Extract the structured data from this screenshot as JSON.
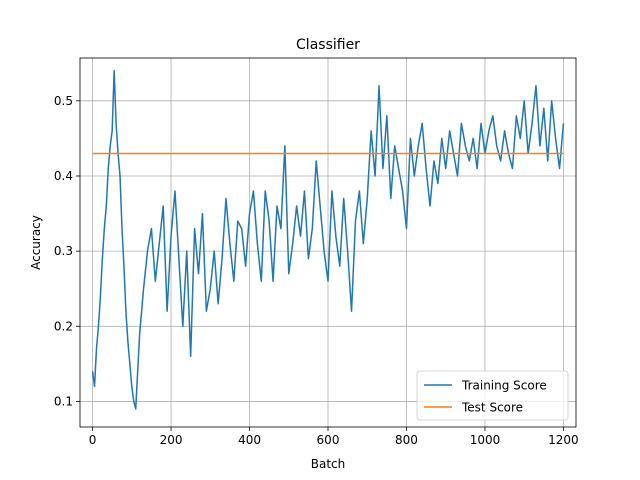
{
  "chart_data": {
    "type": "line",
    "title": "Classifier",
    "xlabel": "Batch",
    "ylabel": "Accuracy",
    "xlim": [
      -32,
      1232
    ],
    "ylim": [
      0.066,
      0.557
    ],
    "x_ticks": [
      0,
      200,
      400,
      600,
      800,
      1000,
      1200
    ],
    "y_ticks": [
      0.1,
      0.2,
      0.3,
      0.4,
      0.5
    ],
    "x_tick_labels": [
      "0",
      "200",
      "400",
      "600",
      "800",
      "1000",
      "1200"
    ],
    "y_tick_labels": [
      "0.1",
      "0.2",
      "0.3",
      "0.4",
      "0.5"
    ],
    "grid": true,
    "legend_position": "lower-right",
    "series": [
      {
        "name": "Training Score",
        "color": "#1f77b4",
        "x": [
          0,
          5,
          10,
          15,
          20,
          25,
          30,
          35,
          40,
          45,
          50,
          55,
          60,
          65,
          70,
          75,
          80,
          85,
          90,
          95,
          100,
          105,
          110,
          115,
          120,
          125,
          130,
          140,
          150,
          160,
          170,
          180,
          190,
          200,
          210,
          220,
          230,
          240,
          250,
          260,
          270,
          280,
          290,
          300,
          310,
          320,
          330,
          340,
          350,
          360,
          370,
          380,
          390,
          400,
          410,
          420,
          430,
          440,
          450,
          460,
          470,
          480,
          490,
          500,
          510,
          520,
          530,
          540,
          550,
          560,
          570,
          580,
          590,
          600,
          610,
          620,
          630,
          640,
          650,
          660,
          670,
          680,
          690,
          700,
          710,
          720,
          730,
          740,
          750,
          760,
          770,
          780,
          790,
          800,
          810,
          820,
          830,
          840,
          850,
          860,
          870,
          880,
          890,
          900,
          910,
          920,
          930,
          940,
          950,
          960,
          970,
          980,
          990,
          1000,
          1010,
          1020,
          1030,
          1040,
          1050,
          1060,
          1070,
          1080,
          1090,
          1100,
          1110,
          1120,
          1130,
          1140,
          1150,
          1160,
          1170,
          1180,
          1190,
          1200
        ],
        "y": [
          0.14,
          0.12,
          0.17,
          0.2,
          0.24,
          0.29,
          0.33,
          0.36,
          0.41,
          0.44,
          0.46,
          0.54,
          0.47,
          0.43,
          0.4,
          0.33,
          0.28,
          0.22,
          0.18,
          0.15,
          0.12,
          0.1,
          0.09,
          0.14,
          0.19,
          0.22,
          0.25,
          0.3,
          0.33,
          0.26,
          0.31,
          0.36,
          0.22,
          0.32,
          0.38,
          0.29,
          0.2,
          0.3,
          0.16,
          0.33,
          0.27,
          0.35,
          0.22,
          0.25,
          0.3,
          0.23,
          0.29,
          0.37,
          0.31,
          0.26,
          0.34,
          0.33,
          0.28,
          0.35,
          0.38,
          0.31,
          0.26,
          0.38,
          0.34,
          0.26,
          0.36,
          0.33,
          0.44,
          0.27,
          0.31,
          0.36,
          0.32,
          0.38,
          0.29,
          0.33,
          0.42,
          0.36,
          0.3,
          0.26,
          0.38,
          0.32,
          0.28,
          0.37,
          0.3,
          0.22,
          0.34,
          0.38,
          0.31,
          0.37,
          0.46,
          0.4,
          0.52,
          0.41,
          0.48,
          0.37,
          0.44,
          0.41,
          0.38,
          0.33,
          0.45,
          0.4,
          0.44,
          0.47,
          0.41,
          0.36,
          0.42,
          0.39,
          0.45,
          0.41,
          0.46,
          0.43,
          0.4,
          0.47,
          0.44,
          0.42,
          0.45,
          0.41,
          0.47,
          0.43,
          0.46,
          0.48,
          0.44,
          0.42,
          0.46,
          0.43,
          0.41,
          0.48,
          0.45,
          0.5,
          0.43,
          0.47,
          0.52,
          0.44,
          0.49,
          0.42,
          0.5,
          0.45,
          0.41,
          0.47
        ]
      },
      {
        "name": "Test Score",
        "color": "#ff7f0e",
        "x": [
          0,
          1200
        ],
        "y": [
          0.43,
          0.43
        ]
      }
    ]
  }
}
